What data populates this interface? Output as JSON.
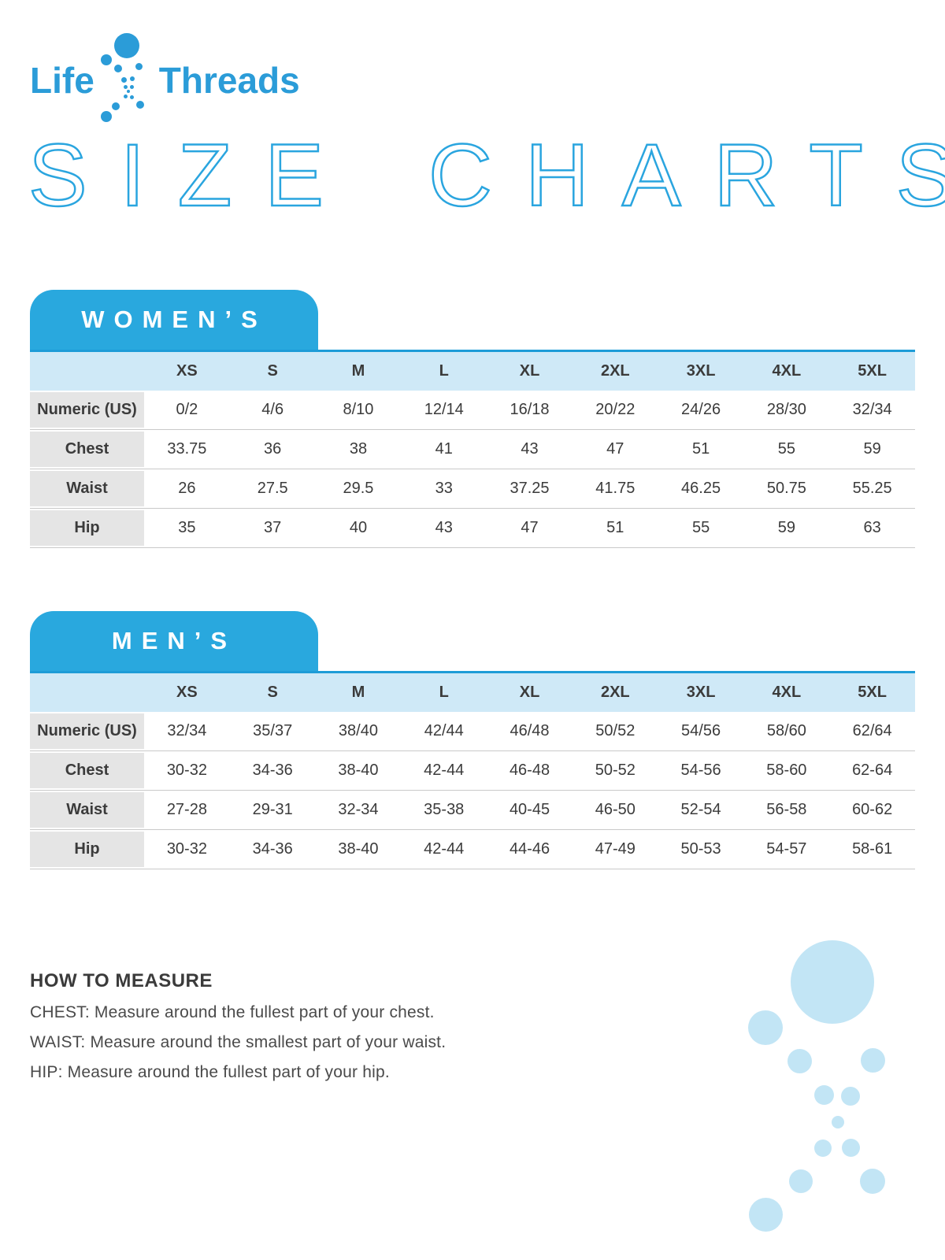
{
  "brand": {
    "word_left": "Life",
    "word_right": "Threads",
    "logo_color": "#2b9cd8"
  },
  "title": "SIZE CHARTS",
  "colors": {
    "brand_blue": "#2b9cd8",
    "tab_blue": "#29a8de",
    "title_outline_blue": "#2aa5df",
    "header_border_blue": "#1e9cd7",
    "header_light_blue": "#cfe9f7",
    "bubble_pale_blue": "#c2e5f5",
    "label_gray": "#e5e5e5",
    "row_line_gray": "#c9c9c9",
    "text_dark": "#3b3b3b"
  },
  "icons": {
    "logo_dots": "dna-dot-helix",
    "bubbles": "dot-helix-watermark"
  },
  "tables": [
    {
      "id": "womens",
      "tab": "WOMEN’S",
      "sizes": [
        "XS",
        "S",
        "M",
        "L",
        "XL",
        "2XL",
        "3XL",
        "4XL",
        "5XL"
      ],
      "rows": [
        {
          "label": "Numeric (US)",
          "values": [
            "0/2",
            "4/6",
            "8/10",
            "12/14",
            "16/18",
            "20/22",
            "24/26",
            "28/30",
            "32/34"
          ]
        },
        {
          "label": "Chest",
          "values": [
            "33.75",
            "36",
            "38",
            "41",
            "43",
            "47",
            "51",
            "55",
            "59"
          ]
        },
        {
          "label": "Waist",
          "values": [
            "26",
            "27.5",
            "29.5",
            "33",
            "37.25",
            "41.75",
            "46.25",
            "50.75",
            "55.25"
          ]
        },
        {
          "label": "Hip",
          "values": [
            "35",
            "37",
            "40",
            "43",
            "47",
            "51",
            "55",
            "59",
            "63"
          ]
        }
      ]
    },
    {
      "id": "mens",
      "tab": "MEN’S",
      "sizes": [
        "XS",
        "S",
        "M",
        "L",
        "XL",
        "2XL",
        "3XL",
        "4XL",
        "5XL"
      ],
      "rows": [
        {
          "label": "Numeric (US)",
          "values": [
            "32/34",
            "35/37",
            "38/40",
            "42/44",
            "46/48",
            "50/52",
            "54/56",
            "58/60",
            "62/64"
          ]
        },
        {
          "label": "Chest",
          "values": [
            "30-32",
            "34-36",
            "38-40",
            "42-44",
            "46-48",
            "50-52",
            "54-56",
            "58-60",
            "62-64"
          ]
        },
        {
          "label": "Waist",
          "values": [
            "27-28",
            "29-31",
            "32-34",
            "35-38",
            "40-45",
            "46-50",
            "52-54",
            "56-58",
            "60-62"
          ]
        },
        {
          "label": "Hip",
          "values": [
            "30-32",
            "34-36",
            "38-40",
            "42-44",
            "44-46",
            "47-49",
            "50-53",
            "54-57",
            "58-61"
          ]
        }
      ]
    }
  ],
  "how_to_measure": {
    "heading": "HOW TO MEASURE",
    "lines": [
      "CHEST: Measure around the fullest part of your chest.",
      "WAIST: Measure around the smallest part of your waist.",
      "HIP: Measure around the fullest part of your hip."
    ]
  }
}
